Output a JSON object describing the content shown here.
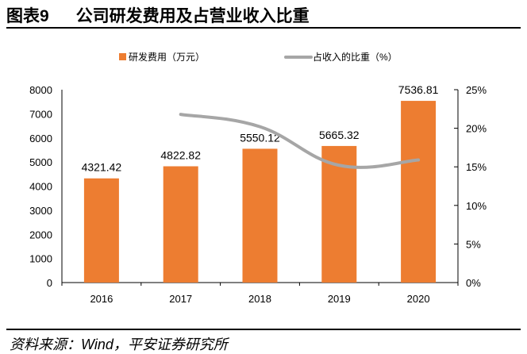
{
  "header": {
    "figure_no": "图表9",
    "title": "公司研发费用及占营业收入比重"
  },
  "footer": {
    "source": "资料来源：Wind，平安证券研究所"
  },
  "chart_data": {
    "type": "bar+line",
    "categories": [
      "2016",
      "2017",
      "2018",
      "2019",
      "2020"
    ],
    "series": [
      {
        "name": "研发费用（万元）",
        "type": "bar",
        "axis": "left",
        "color": "#ED7D31",
        "values": [
          4321.42,
          4822.82,
          5550.12,
          5665.32,
          7536.81
        ],
        "labels": [
          "4321.42",
          "4822.82",
          "5550.12",
          "5665.32",
          "7536.81"
        ]
      },
      {
        "name": "占收入的比重（%）",
        "type": "line",
        "axis": "right",
        "color": "#A6A6A6",
        "values": [
          null,
          21.8,
          20.2,
          15.2,
          15.9
        ]
      }
    ],
    "y_left": {
      "min": 0,
      "max": 8000,
      "ticks": [
        "0",
        "1000",
        "2000",
        "3000",
        "4000",
        "5000",
        "6000",
        "7000",
        "8000"
      ]
    },
    "y_right": {
      "min": 0,
      "max": 25,
      "ticks": [
        "0%",
        "5%",
        "10%",
        "15%",
        "20%",
        "25%"
      ]
    },
    "grid": false,
    "legend_position": "top"
  }
}
